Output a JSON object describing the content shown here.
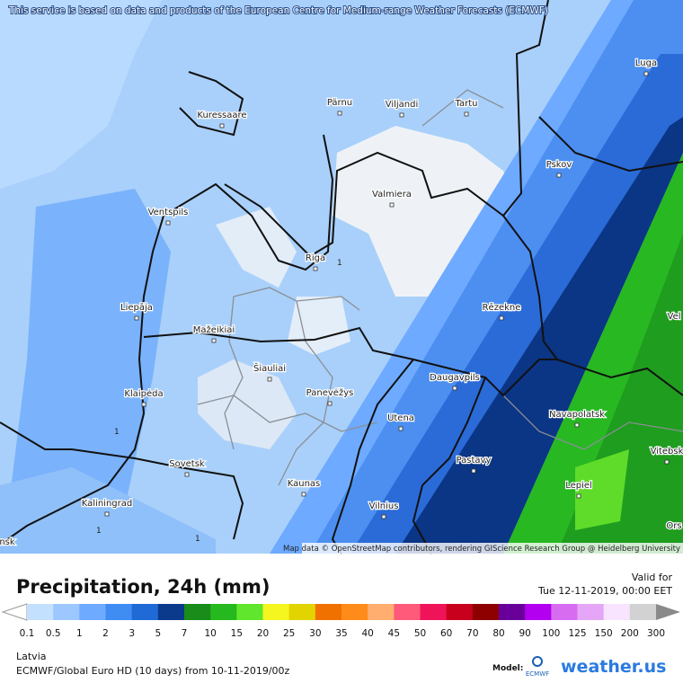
{
  "notice": "This service is based on data and products of the European Centre for Medium-range Weather Forecasts (ECMWF)",
  "cities": [
    "Luga",
    "Pärnu",
    "Viljandi",
    "Tartu",
    "Kuressaare",
    "Pskov",
    "Valmiera",
    "Ventspils",
    "Riga",
    "Rēzekne",
    "Liepāja",
    "Mažeikiai",
    "Šiauliai",
    "Panevėžys",
    "Daugavpils",
    "Klaipėda",
    "Utena",
    "Navapolatsk",
    "Vitebsk",
    "Sovetsk",
    "Pastavy",
    "Kaunas",
    "Lepiel",
    "Vilnius",
    "Kaliningrad",
    "Vel",
    "Ors",
    "nsk"
  ],
  "contour_labels": [
    "1",
    "1",
    "1",
    "1"
  ],
  "attribution": "Map data © OpenStreetMap contributors, rendering GIScience Research Group @ Heidelberg University",
  "title": "Precipitation, 24h (mm)",
  "valid_label": "Valid for",
  "valid_time": "Tue 12-11-2019, 00:00 EET",
  "legend": {
    "labels": [
      "0.1",
      "0.5",
      "1",
      "2",
      "3",
      "5",
      "7",
      "10",
      "15",
      "20",
      "25",
      "30",
      "35",
      "40",
      "45",
      "50",
      "60",
      "70",
      "80",
      "90",
      "100",
      "125",
      "150",
      "200",
      "300"
    ],
    "colors": [
      "#c4e0ff",
      "#9cc8ff",
      "#6eaaff",
      "#3f8cf3",
      "#1f6ad6",
      "#0b3a8c",
      "#1a8c1a",
      "#25b81f",
      "#60e62c",
      "#f5f520",
      "#e2d400",
      "#f07000",
      "#ff8c1a",
      "#ffae70",
      "#ff5a7a",
      "#ef1459",
      "#c8001e",
      "#8e0000",
      "#690099",
      "#b300f0",
      "#d86cf0",
      "#e6a6f7",
      "#f8e4ff",
      "#d2d2d2"
    ]
  },
  "region": "Latvia",
  "model_run": "ECMWF/Global Euro HD (10 days) from 10-11-2019/00z",
  "model_label": "Model:",
  "model_name": "ECMWF",
  "brand": "weather.us"
}
